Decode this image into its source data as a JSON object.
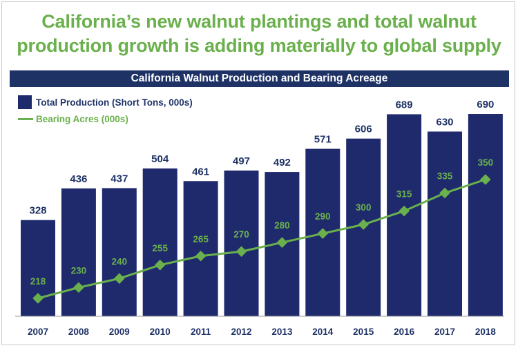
{
  "headline": {
    "line1": "California’s new walnut plantings and total walnut",
    "line2": "production growth is adding materially to global supply"
  },
  "chart_data": {
    "type": "bar",
    "title": "California Walnut Production and Bearing Acreage",
    "categories": [
      "2007",
      "2008",
      "2009",
      "2010",
      "2011",
      "2012",
      "2013",
      "2014",
      "2015",
      "2016",
      "2017",
      "2018"
    ],
    "series": [
      {
        "name": "Total Production (Short Tons, 000s)",
        "kind": "bar",
        "values": [
          328,
          436,
          437,
          504,
          461,
          497,
          492,
          571,
          606,
          689,
          630,
          690
        ]
      },
      {
        "name": "Bearing Acres (000s)",
        "kind": "line",
        "values": [
          218,
          230,
          240,
          255,
          265,
          270,
          280,
          290,
          300,
          315,
          335,
          350
        ]
      }
    ],
    "xlabel": "",
    "ylabel": "",
    "grid": false,
    "legend": "top-left",
    "colors": {
      "bar": "#1f2a6d",
      "line": "#6ab04c",
      "bar_label": "#1f3266",
      "banner": "#1f3266"
    }
  }
}
